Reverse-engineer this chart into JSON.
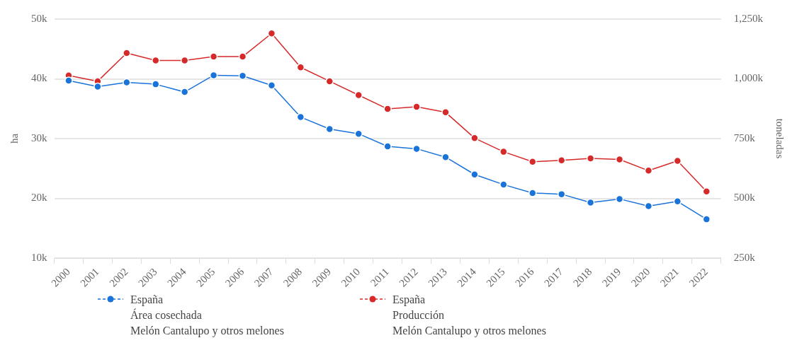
{
  "chart_data": {
    "type": "line",
    "categories": [
      "2000",
      "2001",
      "2002",
      "2003",
      "2004",
      "2005",
      "2006",
      "2007",
      "2008",
      "2009",
      "2010",
      "2011",
      "2012",
      "2013",
      "2014",
      "2015",
      "2016",
      "2017",
      "2018",
      "2019",
      "2020",
      "2021",
      "2022"
    ],
    "ylabel": "ha",
    "y2label": "toneladas",
    "ylim": [
      10000,
      50000
    ],
    "yticks": [
      {
        "value": 10000,
        "label": "10k"
      },
      {
        "value": 20000,
        "label": "20k"
      },
      {
        "value": 30000,
        "label": "30k"
      },
      {
        "value": 40000,
        "label": "40k"
      },
      {
        "value": 50000,
        "label": "50k"
      }
    ],
    "y2lim": [
      250000,
      1250000
    ],
    "y2ticks": [
      {
        "value": 250000,
        "label": "250k"
      },
      {
        "value": 500000,
        "label": "500k"
      },
      {
        "value": 750000,
        "label": "750k"
      },
      {
        "value": 1000000,
        "label": "1,000k"
      },
      {
        "value": 1250000,
        "label": "1,250k"
      }
    ],
    "series": [
      {
        "name": "España\nÁrea cosechada\nMelón Cantalupo y otros melones",
        "color": "#1a73d9",
        "axis": "y",
        "values": [
          39700,
          38700,
          39400,
          39100,
          37800,
          40600,
          40500,
          38900,
          33600,
          31600,
          30800,
          28700,
          28300,
          26900,
          24000,
          22300,
          20900,
          20700,
          19300,
          19900,
          18700,
          19500,
          16500
        ]
      },
      {
        "name": "España\nProducción\nMelón Cantalupo y otros melones",
        "color": "#d62a2a",
        "axis": "y2",
        "values": [
          1014000,
          990000,
          1108000,
          1077000,
          1077000,
          1093000,
          1093000,
          1190000,
          1048000,
          990000,
          932000,
          874000,
          883000,
          860000,
          752000,
          695000,
          653000,
          659000,
          667000,
          663000,
          616000,
          657000,
          529000
        ]
      }
    ],
    "grid": "y",
    "legend": "bottom",
    "marker": "circle",
    "line_style": "solid"
  }
}
